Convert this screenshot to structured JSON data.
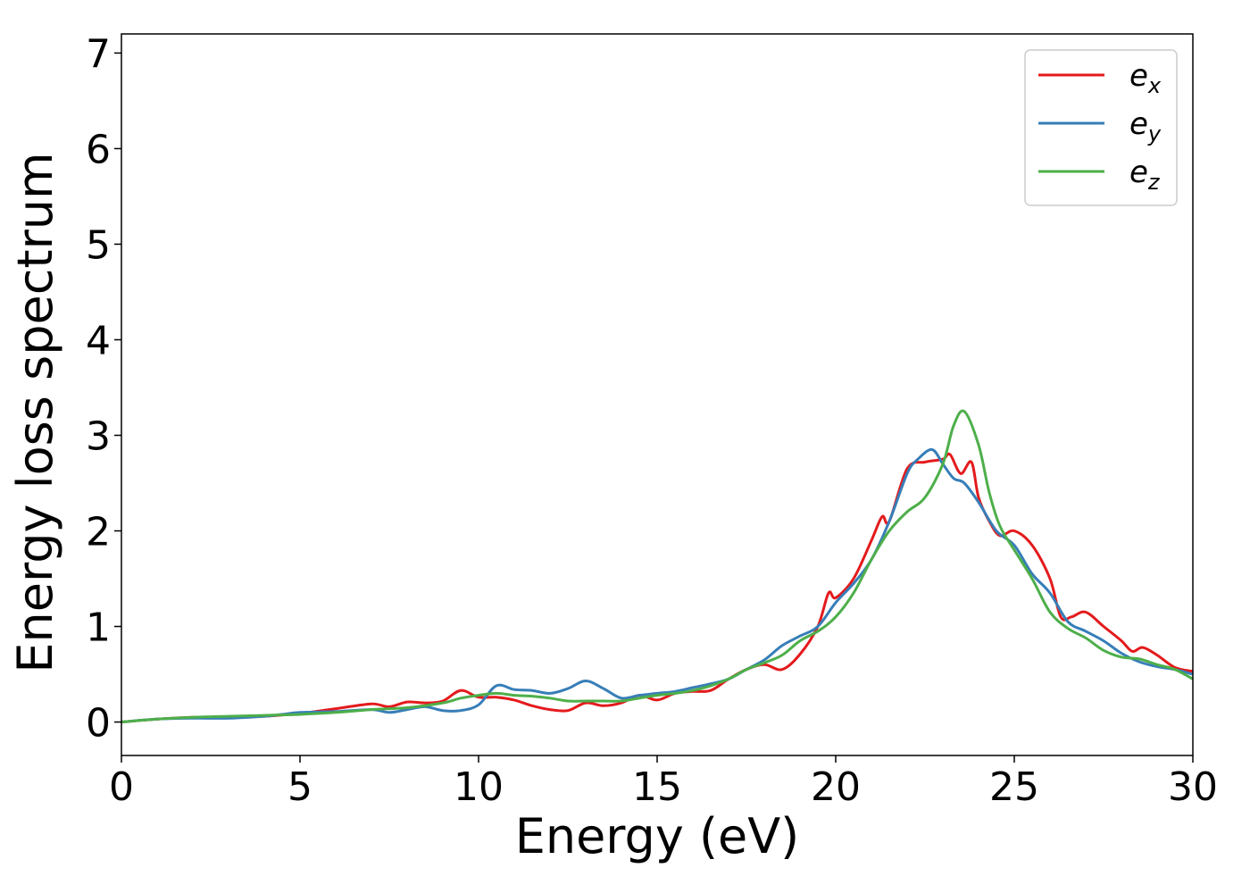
{
  "chart_data": {
    "type": "line",
    "title": "",
    "xlabel": "Energy (eV)",
    "ylabel": "Energy loss spectrum",
    "xlim": [
      0,
      30
    ],
    "ylim": [
      -0.35,
      7.2
    ],
    "xticks": [
      0,
      5,
      10,
      15,
      20,
      25,
      30
    ],
    "yticks": [
      0,
      1,
      2,
      3,
      4,
      5,
      6,
      7
    ],
    "grid": false,
    "legend_position": "top-right",
    "series": [
      {
        "name": "e_x",
        "label_main": "e",
        "label_sub": "x",
        "color": "#e41a1c",
        "x": [
          0,
          1,
          2,
          3,
          4,
          5,
          6,
          7,
          7.5,
          8,
          8.5,
          9,
          9.5,
          10,
          10.5,
          11,
          11.5,
          12,
          12.5,
          13,
          13.5,
          14,
          14.5,
          15,
          15.5,
          16,
          16.5,
          17,
          17.5,
          18,
          18.5,
          19,
          19.5,
          19.8,
          20,
          20.5,
          21,
          21.3,
          21.5,
          22,
          22.5,
          23,
          23.2,
          23.5,
          23.8,
          24,
          24.3,
          24.6,
          25,
          25.5,
          26,
          26.3,
          26.6,
          27,
          27.5,
          28,
          28.3,
          28.6,
          29,
          29.5,
          30
        ],
        "y": [
          0,
          0.03,
          0.05,
          0.05,
          0.06,
          0.09,
          0.14,
          0.19,
          0.16,
          0.21,
          0.2,
          0.22,
          0.33,
          0.26,
          0.26,
          0.23,
          0.17,
          0.13,
          0.12,
          0.2,
          0.17,
          0.2,
          0.28,
          0.23,
          0.3,
          0.32,
          0.33,
          0.45,
          0.55,
          0.6,
          0.55,
          0.71,
          1.0,
          1.35,
          1.3,
          1.5,
          1.9,
          2.15,
          2.1,
          2.65,
          2.72,
          2.75,
          2.8,
          2.6,
          2.72,
          2.35,
          2.1,
          1.95,
          2.0,
          1.85,
          1.5,
          1.1,
          1.1,
          1.15,
          1.0,
          0.85,
          0.74,
          0.78,
          0.7,
          0.57,
          0.53
        ]
      },
      {
        "name": "e_y",
        "label_main": "e",
        "label_sub": "y",
        "color": "#377eb8",
        "x": [
          0,
          1,
          2,
          3,
          4,
          4.5,
          5,
          6,
          7,
          7.5,
          8,
          8.5,
          9,
          9.5,
          10,
          10.5,
          11,
          11.5,
          12,
          12.5,
          13,
          13.5,
          14,
          14.5,
          15,
          15.5,
          16,
          16.5,
          17,
          17.5,
          18,
          18.5,
          19,
          19.5,
          20,
          20.5,
          21,
          21.5,
          22,
          22.3,
          22.7,
          23,
          23.3,
          23.6,
          24,
          24.5,
          25,
          25.5,
          26,
          26.5,
          27,
          27.5,
          28,
          28.5,
          29,
          29.5,
          30
        ],
        "y": [
          0,
          0.03,
          0.04,
          0.04,
          0.06,
          0.08,
          0.1,
          0.11,
          0.13,
          0.1,
          0.13,
          0.16,
          0.12,
          0.12,
          0.18,
          0.38,
          0.34,
          0.33,
          0.3,
          0.35,
          0.43,
          0.35,
          0.25,
          0.28,
          0.3,
          0.32,
          0.36,
          0.4,
          0.45,
          0.55,
          0.65,
          0.8,
          0.9,
          1.0,
          1.25,
          1.45,
          1.7,
          2.1,
          2.6,
          2.75,
          2.85,
          2.7,
          2.55,
          2.5,
          2.3,
          2.0,
          1.85,
          1.55,
          1.35,
          1.05,
          0.95,
          0.85,
          0.72,
          0.63,
          0.58,
          0.55,
          0.5
        ]
      },
      {
        "name": "e_z",
        "label_main": "e",
        "label_sub": "z",
        "color": "#4daf4a",
        "x": [
          0,
          1,
          2,
          3,
          4,
          5,
          6,
          7,
          8,
          9,
          9.5,
          10,
          10.5,
          11,
          11.5,
          12,
          12.5,
          13,
          13.5,
          14,
          14.5,
          15,
          15.5,
          16,
          16.5,
          17,
          17.5,
          18,
          18.5,
          19,
          19.5,
          20,
          20.5,
          21,
          21.5,
          22,
          22.5,
          23,
          23.3,
          23.6,
          24,
          24.3,
          24.6,
          25,
          25.5,
          26,
          26.5,
          27,
          27.5,
          28,
          28.5,
          29,
          29.5,
          30
        ],
        "y": [
          0,
          0.03,
          0.05,
          0.06,
          0.07,
          0.08,
          0.1,
          0.13,
          0.15,
          0.2,
          0.25,
          0.28,
          0.3,
          0.28,
          0.27,
          0.25,
          0.22,
          0.22,
          0.22,
          0.22,
          0.25,
          0.28,
          0.3,
          0.33,
          0.38,
          0.45,
          0.55,
          0.62,
          0.7,
          0.85,
          0.95,
          1.1,
          1.35,
          1.7,
          2.0,
          2.2,
          2.35,
          2.7,
          3.1,
          3.25,
          2.9,
          2.4,
          2.05,
          1.8,
          1.5,
          1.15,
          0.98,
          0.88,
          0.75,
          0.68,
          0.66,
          0.6,
          0.55,
          0.45
        ]
      }
    ]
  }
}
